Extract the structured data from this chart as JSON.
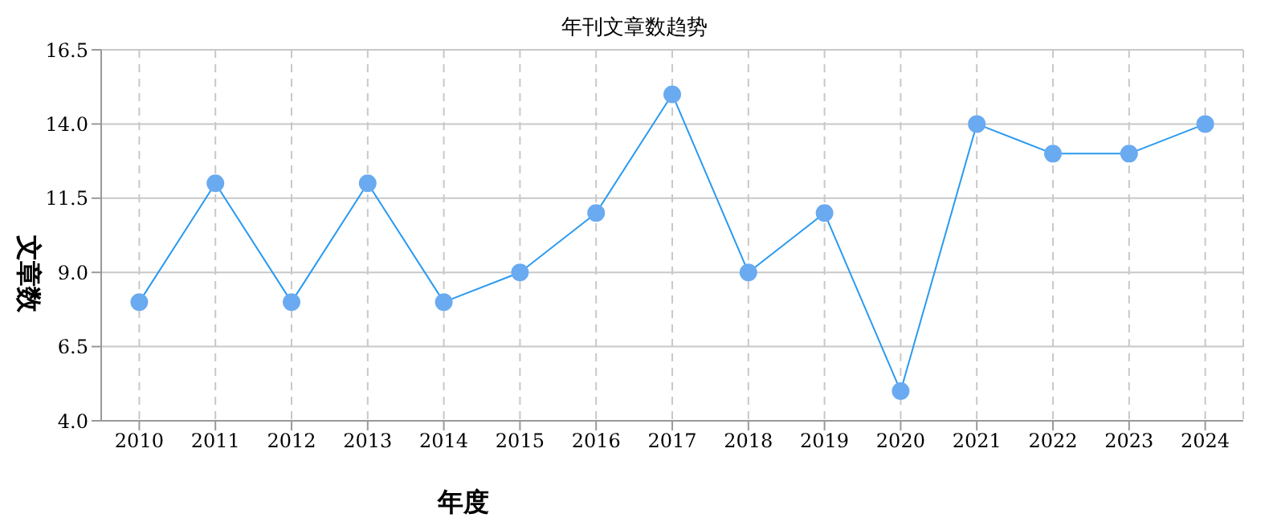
{
  "chart_data": {
    "type": "line",
    "title": "年刊文章数趋势",
    "xlabel": "年度",
    "ylabel": "文章数",
    "categories": [
      "2010",
      "2011",
      "2012",
      "2013",
      "2014",
      "2015",
      "2016",
      "2017",
      "2018",
      "2019",
      "2020",
      "2021",
      "2022",
      "2023",
      "2024"
    ],
    "series": [
      {
        "color": "#2a9af0",
        "values": [
          8,
          12,
          8,
          12,
          8,
          9,
          11,
          15,
          9,
          11,
          5,
          14,
          13,
          13,
          14
        ]
      }
    ],
    "ylim": [
      4,
      16.5
    ],
    "yticks": [
      {
        "value": 4,
        "label": "4.0"
      },
      {
        "value": 6.5,
        "label": "6.5"
      },
      {
        "value": 9,
        "label": "9.0"
      },
      {
        "value": 11.5,
        "label": "11.5"
      },
      {
        "value": 14,
        "label": "14.0"
      },
      {
        "value": 16.5,
        "label": "16.5"
      }
    ],
    "grid": true,
    "marker": "circle",
    "line_style": "solid"
  }
}
